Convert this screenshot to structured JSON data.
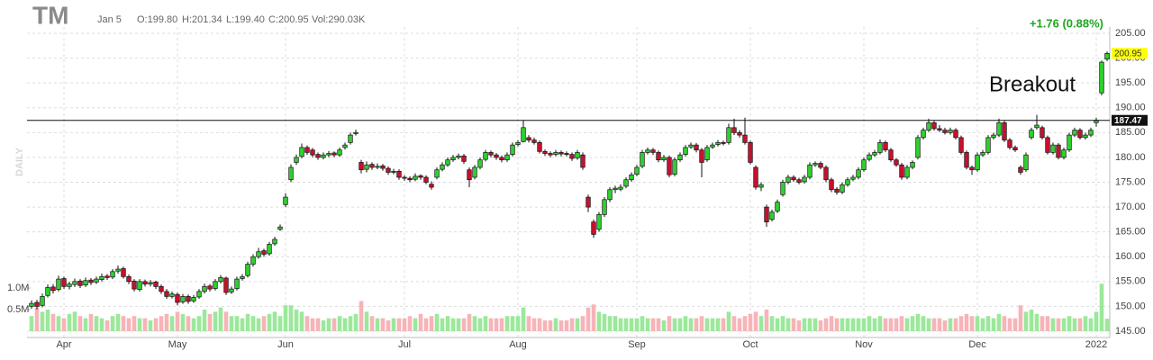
{
  "chart_data": {
    "type": "candlestick",
    "title": "TM",
    "date": "Jan 5",
    "open_text": "O:199.80",
    "high_text": "H:201.34",
    "low_text": "L:199.40",
    "close_text": "C:200.95",
    "volume_text": "Vol:290.03K",
    "change_text": "+1.76 (0.88%)",
    "period": "DAILY",
    "annotation": "Breakout",
    "hline": {
      "value": 187.47,
      "label": "187.47"
    },
    "last_price_label": "200.95",
    "up_color": "#2fd12f",
    "down_color": "#c8102e",
    "volume_up_color": "#9be89b",
    "volume_down_color": "#f6b4b8",
    "grid": true,
    "xlim": [
      0,
      199
    ],
    "xticks": [
      {
        "value": 6,
        "label": "Apr"
      },
      {
        "value": 27,
        "label": "May"
      },
      {
        "value": 47,
        "label": "Jun"
      },
      {
        "value": 69,
        "label": "Jul"
      },
      {
        "value": 90,
        "label": "Aug"
      },
      {
        "value": 112,
        "label": "Sep"
      },
      {
        "value": 133,
        "label": "Oct"
      },
      {
        "value": 154,
        "label": "Nov"
      },
      {
        "value": 175,
        "label": "Dec"
      },
      {
        "value": 197,
        "label": "2022"
      }
    ],
    "ylim": [
      145,
      205
    ],
    "yticks": [
      {
        "value": 145,
        "label": "145.00"
      },
      {
        "value": 150,
        "label": "150.00"
      },
      {
        "value": 155,
        "label": "155.00"
      },
      {
        "value": 160,
        "label": "160.00"
      },
      {
        "value": 165,
        "label": "165.00"
      },
      {
        "value": 170,
        "label": "170.00"
      },
      {
        "value": 175,
        "label": "175.00"
      },
      {
        "value": 180,
        "label": "180.00"
      },
      {
        "value": 185,
        "label": "185.00"
      },
      {
        "value": 190,
        "label": "190.00"
      },
      {
        "value": 195,
        "label": "195.00"
      },
      {
        "value": 200,
        "label": "200.00"
      },
      {
        "value": 205,
        "label": "205.00"
      }
    ],
    "y2lim": [
      0,
      6.9
    ],
    "y2ticks": [
      {
        "value": 0.5,
        "label": "0.5M"
      },
      {
        "value": 1,
        "label": "1.0M"
      }
    ],
    "ohlc": [
      [
        150.0,
        151.2,
        149.5,
        150.6
      ],
      [
        150.8,
        151.3,
        149.4,
        150.0
      ],
      [
        150.2,
        152.6,
        149.8,
        152.0
      ],
      [
        152.2,
        154.4,
        151.8,
        153.8
      ],
      [
        153.9,
        154.5,
        152.6,
        153.2
      ],
      [
        153.4,
        156.2,
        153.0,
        155.5
      ],
      [
        155.6,
        156.0,
        153.5,
        154.0
      ],
      [
        154.0,
        155.0,
        153.4,
        154.5
      ],
      [
        154.4,
        155.6,
        153.9,
        155.0
      ],
      [
        155.1,
        155.5,
        153.7,
        154.2
      ],
      [
        154.3,
        155.8,
        153.9,
        155.2
      ],
      [
        155.3,
        155.7,
        154.3,
        154.8
      ],
      [
        154.9,
        156.0,
        154.5,
        155.5
      ],
      [
        155.4,
        156.6,
        155.0,
        156.0
      ],
      [
        156.1,
        156.5,
        155.3,
        155.8
      ],
      [
        155.9,
        157.5,
        155.5,
        157.0
      ],
      [
        157.1,
        158.2,
        156.6,
        157.5
      ],
      [
        157.6,
        158.0,
        155.6,
        156.0
      ],
      [
        156.0,
        156.4,
        154.5,
        155.0
      ],
      [
        155.1,
        155.5,
        153.0,
        153.5
      ],
      [
        153.4,
        155.5,
        153.0,
        155.0
      ],
      [
        155.0,
        155.4,
        154.0,
        154.5
      ],
      [
        154.5,
        155.3,
        154.0,
        154.8
      ],
      [
        154.9,
        155.2,
        153.5,
        154.0
      ],
      [
        154.0,
        154.4,
        152.5,
        153.0
      ],
      [
        153.0,
        153.5,
        151.5,
        152.0
      ],
      [
        152.0,
        153.0,
        151.6,
        152.5
      ],
      [
        152.4,
        152.8,
        150.2,
        150.8
      ],
      [
        150.9,
        152.5,
        150.5,
        152.0
      ],
      [
        152.0,
        152.4,
        150.5,
        151.0
      ],
      [
        151.1,
        152.3,
        150.7,
        151.8
      ],
      [
        151.9,
        153.5,
        151.5,
        153.0
      ],
      [
        153.0,
        154.6,
        152.6,
        154.0
      ],
      [
        154.1,
        154.5,
        153.0,
        153.5
      ],
      [
        153.6,
        155.5,
        153.2,
        155.0
      ],
      [
        155.0,
        156.3,
        154.6,
        155.8
      ],
      [
        155.7,
        156.0,
        152.3,
        152.8
      ],
      [
        152.9,
        154.0,
        152.5,
        153.5
      ],
      [
        153.6,
        156.0,
        153.2,
        155.5
      ],
      [
        155.6,
        156.5,
        155.2,
        156.0
      ],
      [
        156.2,
        159.0,
        155.8,
        158.5
      ],
      [
        158.5,
        160.5,
        158.0,
        160.0
      ],
      [
        160.0,
        161.8,
        159.6,
        161.0
      ],
      [
        161.2,
        161.6,
        160.0,
        160.5
      ],
      [
        160.6,
        163.0,
        160.2,
        162.5
      ],
      [
        162.6,
        164.0,
        162.2,
        163.5
      ],
      [
        165.5,
        166.5,
        165.2,
        166.0
      ],
      [
        170.5,
        172.8,
        170.0,
        172.0
      ],
      [
        175.5,
        178.6,
        175.0,
        178.0
      ],
      [
        179.0,
        180.6,
        178.5,
        180.0
      ],
      [
        180.2,
        182.8,
        179.8,
        182.0
      ],
      [
        182.0,
        182.4,
        180.5,
        181.0
      ],
      [
        181.5,
        181.9,
        180.0,
        180.5
      ],
      [
        180.6,
        181.0,
        179.5,
        180.0
      ],
      [
        180.0,
        181.0,
        179.6,
        180.5
      ],
      [
        180.5,
        181.3,
        180.0,
        180.8
      ],
      [
        180.9,
        181.2,
        180.0,
        180.5
      ],
      [
        180.5,
        182.0,
        180.1,
        181.5
      ],
      [
        182.0,
        183.0,
        181.6,
        182.5
      ],
      [
        183.0,
        185.0,
        182.6,
        184.5
      ],
      [
        184.8,
        185.6,
        184.4,
        185.0
      ],
      [
        179.0,
        179.5,
        176.8,
        177.5
      ],
      [
        177.6,
        179.2,
        177.0,
        178.5
      ],
      [
        178.6,
        179.0,
        177.5,
        178.0
      ],
      [
        178.0,
        178.8,
        177.6,
        178.2
      ],
      [
        178.3,
        178.7,
        177.3,
        177.8
      ],
      [
        177.8,
        178.2,
        176.5,
        177.0
      ],
      [
        177.0,
        177.7,
        176.6,
        177.2
      ],
      [
        177.2,
        177.6,
        175.5,
        176.0
      ],
      [
        176.0,
        176.4,
        175.3,
        175.8
      ],
      [
        175.8,
        176.2,
        175.0,
        175.5
      ],
      [
        175.6,
        176.8,
        175.2,
        176.2
      ],
      [
        176.3,
        176.6,
        175.5,
        176.0
      ],
      [
        176.0,
        176.4,
        174.6,
        175.0
      ],
      [
        174.6,
        175.2,
        173.5,
        174.0
      ],
      [
        176.0,
        178.0,
        175.6,
        177.5
      ],
      [
        177.6,
        179.0,
        177.2,
        178.5
      ],
      [
        178.5,
        180.0,
        178.1,
        179.5
      ],
      [
        179.5,
        180.5,
        179.1,
        180.0
      ],
      [
        180.0,
        180.8,
        179.6,
        180.3
      ],
      [
        180.3,
        180.7,
        178.7,
        179.2
      ],
      [
        177.5,
        178.0,
        174.0,
        175.5
      ],
      [
        176.0,
        178.5,
        175.6,
        178.0
      ],
      [
        178.0,
        180.0,
        177.6,
        179.5
      ],
      [
        179.6,
        181.5,
        179.2,
        181.0
      ],
      [
        181.0,
        181.4,
        180.0,
        180.5
      ],
      [
        180.5,
        180.9,
        179.5,
        180.0
      ],
      [
        180.0,
        180.4,
        179.0,
        179.5
      ],
      [
        179.5,
        181.0,
        179.1,
        180.5
      ],
      [
        180.6,
        183.0,
        180.2,
        182.5
      ],
      [
        182.6,
        183.5,
        182.2,
        183.0
      ],
      [
        183.2,
        187.5,
        183.0,
        186.0
      ],
      [
        184.0,
        184.5,
        183.0,
        183.5
      ],
      [
        183.5,
        184.0,
        182.6,
        183.0
      ],
      [
        183.0,
        183.4,
        180.8,
        181.2
      ],
      [
        181.2,
        181.6,
        180.3,
        180.8
      ],
      [
        180.8,
        181.2,
        180.0,
        180.5
      ],
      [
        180.6,
        181.5,
        180.2,
        181.0
      ],
      [
        181.0,
        181.4,
        180.2,
        180.7
      ],
      [
        180.8,
        181.2,
        180.2,
        180.6
      ],
      [
        180.6,
        181.0,
        179.3,
        179.8
      ],
      [
        179.9,
        181.5,
        179.5,
        181.0
      ],
      [
        180.5,
        181.0,
        177.5,
        178.0
      ],
      [
        172.0,
        172.5,
        169.0,
        170.0
      ],
      [
        167.0,
        167.5,
        163.8,
        164.5
      ],
      [
        165.5,
        169.0,
        165.0,
        168.5
      ],
      [
        168.5,
        172.0,
        168.0,
        171.5
      ],
      [
        171.5,
        174.0,
        171.0,
        173.5
      ],
      [
        173.5,
        174.3,
        172.8,
        173.8
      ],
      [
        173.6,
        174.6,
        173.2,
        174.0
      ],
      [
        174.2,
        176.0,
        173.8,
        175.5
      ],
      [
        175.5,
        177.0,
        175.1,
        176.5
      ],
      [
        176.6,
        178.5,
        176.2,
        178.0
      ],
      [
        178.2,
        181.5,
        177.8,
        181.0
      ],
      [
        181.0,
        182.0,
        180.6,
        181.5
      ],
      [
        181.5,
        181.9,
        180.5,
        181.0
      ],
      [
        181.0,
        181.4,
        179.0,
        179.5
      ],
      [
        179.5,
        180.5,
        179.1,
        180.0
      ],
      [
        180.0,
        180.4,
        176.0,
        176.5
      ],
      [
        176.6,
        180.0,
        176.2,
        179.5
      ],
      [
        179.5,
        181.0,
        179.1,
        180.5
      ],
      [
        180.6,
        182.5,
        180.2,
        182.0
      ],
      [
        182.1,
        183.0,
        181.7,
        182.5
      ],
      [
        182.5,
        182.9,
        181.0,
        181.5
      ],
      [
        181.5,
        181.9,
        176.0,
        179.0
      ],
      [
        179.5,
        182.5,
        179.1,
        182.0
      ],
      [
        182.1,
        183.0,
        181.7,
        182.5
      ],
      [
        182.6,
        183.5,
        182.2,
        183.0
      ],
      [
        183.0,
        183.4,
        182.4,
        182.8
      ],
      [
        183.0,
        186.8,
        182.6,
        186.0
      ],
      [
        186.0,
        187.8,
        184.5,
        185.0
      ],
      [
        185.0,
        185.5,
        184.0,
        184.5
      ],
      [
        184.5,
        188.0,
        182.6,
        183.0
      ],
      [
        183.0,
        183.4,
        178.6,
        179.0
      ],
      [
        178.0,
        178.4,
        173.5,
        174.0
      ],
      [
        174.0,
        175.0,
        173.2,
        174.5
      ],
      [
        170.0,
        170.5,
        166.0,
        167.0
      ],
      [
        167.5,
        169.5,
        167.1,
        169.0
      ],
      [
        169.2,
        171.5,
        168.8,
        171.0
      ],
      [
        172.5,
        175.5,
        172.1,
        175.0
      ],
      [
        175.0,
        176.5,
        174.6,
        176.0
      ],
      [
        176.0,
        176.4,
        175.1,
        175.5
      ],
      [
        175.5,
        175.9,
        174.6,
        175.0
      ],
      [
        175.1,
        176.5,
        174.7,
        176.0
      ],
      [
        176.0,
        179.0,
        175.6,
        178.5
      ],
      [
        178.5,
        179.2,
        178.1,
        178.8
      ],
      [
        178.8,
        179.2,
        177.6,
        178.0
      ],
      [
        178.0,
        178.4,
        175.0,
        175.5
      ],
      [
        175.5,
        175.9,
        173.0,
        173.5
      ],
      [
        173.6,
        174.0,
        172.5,
        173.0
      ],
      [
        173.0,
        175.0,
        172.6,
        174.5
      ],
      [
        174.5,
        176.0,
        174.1,
        175.5
      ],
      [
        175.6,
        176.5,
        175.2,
        176.0
      ],
      [
        176.0,
        178.0,
        175.6,
        177.5
      ],
      [
        177.5,
        180.0,
        177.1,
        179.5
      ],
      [
        179.6,
        181.0,
        179.2,
        180.5
      ],
      [
        180.5,
        181.5,
        180.1,
        181.0
      ],
      [
        181.0,
        183.6,
        180.6,
        183.0
      ],
      [
        183.0,
        183.4,
        181.1,
        181.5
      ],
      [
        181.5,
        181.9,
        179.1,
        179.5
      ],
      [
        179.5,
        179.9,
        178.1,
        178.5
      ],
      [
        178.5,
        178.9,
        175.5,
        176.0
      ],
      [
        176.0,
        178.5,
        175.6,
        178.0
      ],
      [
        178.0,
        179.4,
        177.6,
        179.0
      ],
      [
        180.0,
        184.5,
        179.6,
        184.0
      ],
      [
        184.0,
        186.0,
        183.6,
        185.5
      ],
      [
        185.5,
        187.8,
        185.1,
        187.0
      ],
      [
        187.0,
        187.4,
        185.4,
        185.8
      ],
      [
        185.8,
        186.5,
        185.1,
        185.5
      ],
      [
        185.5,
        186.0,
        184.6,
        185.0
      ],
      [
        185.0,
        186.0,
        184.6,
        185.5
      ],
      [
        185.5,
        185.9,
        183.6,
        184.0
      ],
      [
        184.0,
        184.4,
        180.6,
        181.0
      ],
      [
        181.0,
        181.4,
        177.6,
        178.0
      ],
      [
        178.0,
        178.4,
        176.5,
        177.5
      ],
      [
        177.5,
        181.0,
        177.1,
        180.5
      ],
      [
        180.5,
        181.5,
        180.1,
        181.0
      ],
      [
        181.0,
        184.5,
        180.6,
        184.0
      ],
      [
        184.0,
        185.0,
        183.6,
        184.5
      ],
      [
        184.5,
        187.8,
        184.1,
        187.0
      ],
      [
        187.0,
        187.4,
        183.1,
        183.5
      ],
      [
        183.5,
        183.9,
        181.6,
        182.0
      ],
      [
        182.0,
        182.4,
        181.1,
        181.5
      ],
      [
        178.0,
        178.4,
        176.5,
        177.0
      ],
      [
        177.5,
        181.0,
        177.1,
        180.5
      ],
      [
        184.0,
        186.0,
        183.6,
        185.5
      ],
      [
        186.0,
        188.6,
        185.6,
        186.5
      ],
      [
        186.0,
        186.4,
        183.6,
        184.0
      ],
      [
        184.0,
        184.4,
        180.6,
        181.0
      ],
      [
        181.0,
        183.0,
        180.6,
        182.5
      ],
      [
        182.5,
        182.9,
        179.6,
        180.0
      ],
      [
        180.0,
        182.0,
        179.6,
        181.5
      ],
      [
        181.5,
        185.0,
        181.1,
        184.5
      ],
      [
        184.5,
        186.0,
        184.1,
        185.5
      ],
      [
        185.5,
        185.9,
        183.6,
        184.0
      ],
      [
        184.0,
        185.0,
        183.6,
        184.5
      ],
      [
        184.5,
        186.0,
        184.1,
        185.5
      ],
      [
        187.0,
        188.0,
        186.2,
        187.5
      ],
      [
        193.0,
        199.5,
        192.5,
        199.19
      ],
      [
        199.8,
        201.34,
        199.4,
        200.95
      ]
    ],
    "volume": [
      0.35,
      0.55,
      0.45,
      0.5,
      0.4,
      0.35,
      0.3,
      0.4,
      0.45,
      0.35,
      0.3,
      0.4,
      0.35,
      0.3,
      0.25,
      0.35,
      0.4,
      0.35,
      0.3,
      0.35,
      0.3,
      0.3,
      0.25,
      0.3,
      0.35,
      0.4,
      0.35,
      0.45,
      0.4,
      0.35,
      0.3,
      0.35,
      0.5,
      0.4,
      0.45,
      0.55,
      0.45,
      0.35,
      0.35,
      0.3,
      0.4,
      0.35,
      0.3,
      0.35,
      0.4,
      0.45,
      0.35,
      0.6,
      0.6,
      0.5,
      0.45,
      0.35,
      0.3,
      0.3,
      0.25,
      0.3,
      0.3,
      0.35,
      0.3,
      0.35,
      0.4,
      0.7,
      0.45,
      0.35,
      0.3,
      0.3,
      0.25,
      0.3,
      0.3,
      0.3,
      0.35,
      0.3,
      0.4,
      0.3,
      0.35,
      0.4,
      0.3,
      0.35,
      0.3,
      0.3,
      0.3,
      0.4,
      0.35,
      0.3,
      0.35,
      0.3,
      0.3,
      0.3,
      0.35,
      0.35,
      0.35,
      0.55,
      0.35,
      0.3,
      0.3,
      0.25,
      0.25,
      0.3,
      0.25,
      0.25,
      0.3,
      0.3,
      0.35,
      0.55,
      0.62,
      0.45,
      0.4,
      0.35,
      0.35,
      0.3,
      0.3,
      0.3,
      0.3,
      0.35,
      0.3,
      0.3,
      0.3,
      0.25,
      0.35,
      0.3,
      0.3,
      0.35,
      0.3,
      0.3,
      0.35,
      0.3,
      0.3,
      0.3,
      0.3,
      0.45,
      0.35,
      0.3,
      0.35,
      0.4,
      0.45,
      0.35,
      0.5,
      0.35,
      0.3,
      0.35,
      0.3,
      0.3,
      0.25,
      0.3,
      0.3,
      0.3,
      0.25,
      0.3,
      0.35,
      0.3,
      0.3,
      0.3,
      0.3,
      0.3,
      0.3,
      0.35,
      0.3,
      0.35,
      0.3,
      0.3,
      0.3,
      0.35,
      0.3,
      0.35,
      0.4,
      0.35,
      0.3,
      0.3,
      0.3,
      0.25,
      0.3,
      0.3,
      0.35,
      0.4,
      0.35,
      0.35,
      0.3,
      0.35,
      0.3,
      0.4,
      0.35,
      0.3,
      0.3,
      0.6,
      0.45,
      0.5,
      0.4,
      0.35,
      0.35,
      0.3,
      0.3,
      0.3,
      0.35,
      0.3,
      0.3,
      0.35,
      0.3,
      0.45,
      1.1,
      0.29
    ]
  }
}
